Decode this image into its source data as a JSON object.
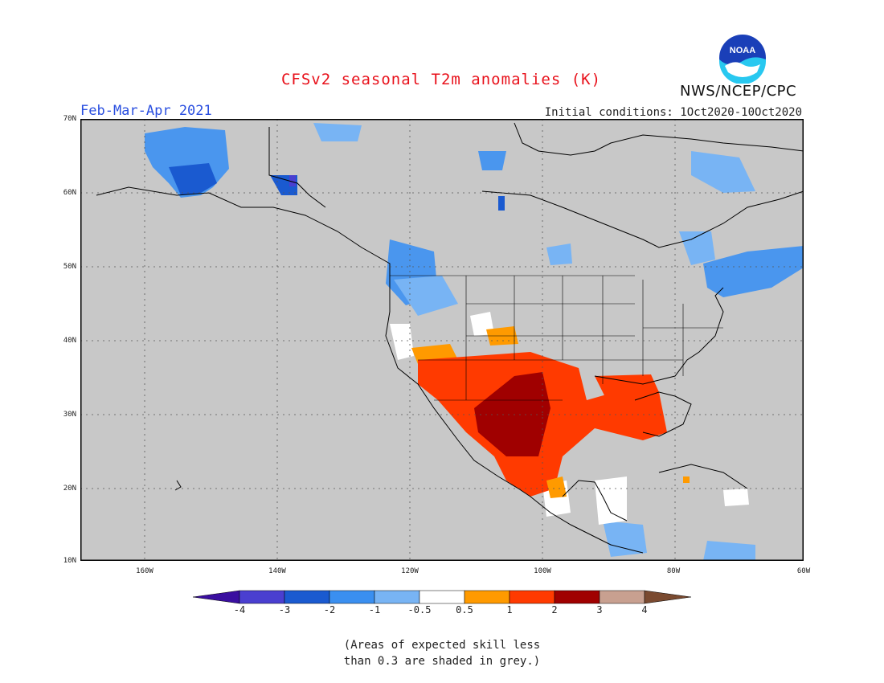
{
  "header": {
    "title": "CFSv2 seasonal T2m anomalies (K)",
    "period": "Feb-Mar-Apr 2021",
    "initial_conditions": "Initial conditions: 1Oct2020-10Oct2020",
    "agency": "NWS/NCEP/CPC",
    "logo_text": "NOAA"
  },
  "map": {
    "lat_labels": [
      "70N",
      "60N",
      "50N",
      "40N",
      "30N",
      "20N",
      "10N"
    ],
    "lon_labels": [
      "160W",
      "140W",
      "120W",
      "100W",
      "80W",
      "60W"
    ],
    "background_color": "#c8c8c8"
  },
  "legend": {
    "labels": [
      "-4",
      "-3",
      "-2",
      "-1",
      "-0.5",
      "0.5",
      "1",
      "2",
      "3",
      "4"
    ],
    "colors": [
      "#3a0fa0",
      "#4a3fd0",
      "#1a5ad0",
      "#3a8ff0",
      "#78b4f4",
      "#ffffff",
      "#ff9a00",
      "#ff3a00",
      "#a00000",
      "#c8a090",
      "#7a4a30"
    ]
  },
  "note": {
    "line1": "(Areas of expected skill less",
    "line2": "than 0.3 are shaded in grey.)"
  }
}
